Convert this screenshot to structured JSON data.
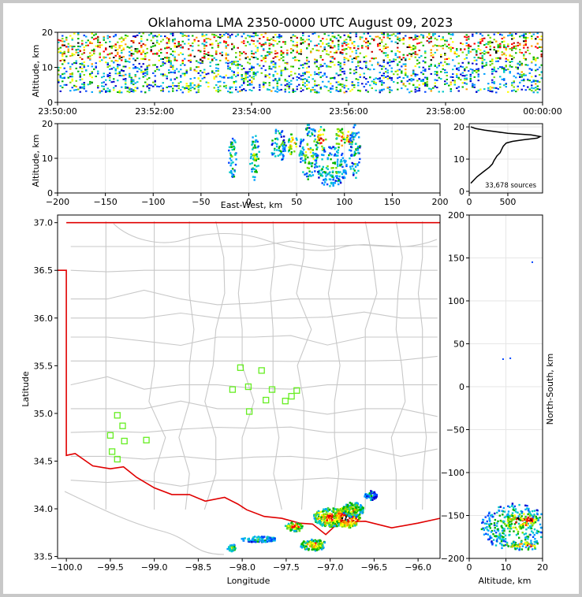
{
  "figure": {
    "title": "Oklahoma LMA 2350-0000 UTC August 09, 2023"
  },
  "chart_data": [
    {
      "panel": "altitude-vs-time",
      "type": "heatmap",
      "ylabel": "Altitude, km",
      "ylim": [
        0,
        20
      ],
      "y_ticks": [
        "0",
        "10",
        "20"
      ],
      "x_ticks": [
        "23:50:00",
        "23:52:00",
        "23:54:00",
        "23:56:00",
        "23:58:00",
        "00:00:00"
      ],
      "x_range": [
        "23:50:00",
        "00:00:00"
      ]
    },
    {
      "panel": "altitude-vs-east-west",
      "type": "heatmap",
      "xlabel": "East-West, km",
      "ylabel": "Altitude, km",
      "xlim": [
        -200,
        200
      ],
      "ylim": [
        0,
        20
      ],
      "x_ticks": [
        "−200",
        "−150",
        "−100",
        "−50",
        "0",
        "50",
        "100",
        "150",
        "200"
      ],
      "y_ticks": [
        "0",
        "10",
        "20"
      ],
      "blobs": [
        {
          "x": -18,
          "y": 11,
          "w": 8,
          "h": 14,
          "level": 0.45
        },
        {
          "x": 5,
          "y": 11,
          "w": 10,
          "h": 14,
          "level": 0.5
        },
        {
          "x": 30,
          "y": 14,
          "w": 16,
          "h": 10,
          "level": 0.45
        },
        {
          "x": 45,
          "y": 14,
          "w": 10,
          "h": 7,
          "level": 0.85
        },
        {
          "x": 62,
          "y": 12,
          "w": 20,
          "h": 16,
          "level": 0.55
        },
        {
          "x": 75,
          "y": 16,
          "w": 10,
          "h": 7,
          "level": 0.9
        },
        {
          "x": 95,
          "y": 16,
          "w": 10,
          "h": 7,
          "level": 0.9
        },
        {
          "x": 105,
          "y": 16,
          "w": 8,
          "h": 6,
          "level": 1.0
        },
        {
          "x": 85,
          "y": 8,
          "w": 35,
          "h": 12,
          "level": 0.45
        },
        {
          "x": 110,
          "y": 12,
          "w": 12,
          "h": 16,
          "level": 0.4
        }
      ]
    },
    {
      "panel": "altitude-histogram",
      "type": "line",
      "annotation": "33,678 sources",
      "xlim": [
        0,
        950
      ],
      "ylim": [
        -0.5,
        21
      ],
      "x_ticks": [
        "0",
        "500"
      ],
      "y_ticks": [
        "0",
        "10",
        "20"
      ],
      "x": [
        20,
        60,
        100,
        180,
        260,
        300,
        320,
        360,
        380,
        400,
        420,
        440,
        460,
        480,
        560,
        700,
        880,
        920,
        800,
        500,
        200,
        80,
        20
      ],
      "y": [
        2.5,
        3.5,
        4.5,
        6,
        7.5,
        8.5,
        9.5,
        11,
        11.5,
        12,
        13,
        14,
        14.5,
        15,
        15.5,
        16,
        16.5,
        17,
        17.5,
        18,
        19,
        19.5,
        20
      ]
    },
    {
      "panel": "plan-view",
      "type": "scatter",
      "xlabel": "Longitude",
      "ylabel": "Latitude",
      "xlim": [
        -100.1,
        -95.75
      ],
      "ylim": [
        33.48,
        37.08
      ],
      "x_ticks": [
        "−100.0",
        "−99.5",
        "−99.0",
        "−98.5",
        "−98.0",
        "−97.5",
        "−97.0",
        "−96.5",
        "−96.0"
      ],
      "y_ticks": [
        "33.5",
        "34.0",
        "34.5",
        "35.0",
        "35.5",
        "36.0",
        "36.5",
        "37.0"
      ],
      "stations": [
        {
          "lon": -98.02,
          "lat": 35.48
        },
        {
          "lon": -97.78,
          "lat": 35.45
        },
        {
          "lon": -97.93,
          "lat": 35.28
        },
        {
          "lon": -98.11,
          "lat": 35.25
        },
        {
          "lon": -97.66,
          "lat": 35.25
        },
        {
          "lon": -97.38,
          "lat": 35.24
        },
        {
          "lon": -97.44,
          "lat": 35.18
        },
        {
          "lon": -97.73,
          "lat": 35.14
        },
        {
          "lon": -97.51,
          "lat": 35.13
        },
        {
          "lon": -97.92,
          "lat": 35.02
        },
        {
          "lon": -99.42,
          "lat": 34.98
        },
        {
          "lon": -99.36,
          "lat": 34.87
        },
        {
          "lon": -99.5,
          "lat": 34.77
        },
        {
          "lon": -99.34,
          "lat": 34.71
        },
        {
          "lon": -99.09,
          "lat": 34.72
        },
        {
          "lon": -99.48,
          "lat": 34.6
        },
        {
          "lon": -99.42,
          "lat": 34.52
        }
      ],
      "blobs": [
        {
          "lon": -97.0,
          "lat": 33.92,
          "rx": 0.2,
          "ry": 0.1,
          "level": 0.8
        },
        {
          "lon": -96.82,
          "lat": 33.92,
          "rx": 0.15,
          "ry": 0.11,
          "level": 1.0
        },
        {
          "lon": -96.75,
          "lat": 34.0,
          "rx": 0.12,
          "ry": 0.08,
          "level": 0.6
        },
        {
          "lon": -97.2,
          "lat": 33.63,
          "rx": 0.15,
          "ry": 0.06,
          "level": 0.7
        },
        {
          "lon": -97.42,
          "lat": 33.82,
          "rx": 0.1,
          "ry": 0.05,
          "level": 0.75
        },
        {
          "lon": -97.82,
          "lat": 33.69,
          "rx": 0.2,
          "ry": 0.03,
          "level": 0.4
        },
        {
          "lon": -98.13,
          "lat": 33.6,
          "rx": 0.05,
          "ry": 0.04,
          "level": 0.5
        },
        {
          "lon": -96.55,
          "lat": 34.15,
          "rx": 0.07,
          "ry": 0.05,
          "level": 0.3
        }
      ]
    },
    {
      "panel": "north-south-vs-altitude",
      "type": "heatmap",
      "xlabel": "Altitude, km",
      "ylabel": "North-South, km",
      "xlim": [
        0,
        20
      ],
      "ylim": [
        -200,
        200
      ],
      "x_ticks": [
        "0",
        "10",
        "20"
      ],
      "y_ticks": [
        "200",
        "150",
        "100",
        "50",
        "0",
        "−50",
        "−100",
        "−150",
        "−200"
      ],
      "blobs": [
        {
          "x": 12,
          "y": -162,
          "w": 18,
          "h": 55,
          "level": 0.5
        },
        {
          "x": 14,
          "y": -155,
          "w": 10,
          "h": 22,
          "level": 0.9
        },
        {
          "x": 16,
          "y": -153,
          "w": 5,
          "h": 12,
          "level": 1.0
        },
        {
          "x": 15,
          "y": -184,
          "w": 12,
          "h": 10,
          "level": 0.8
        }
      ]
    }
  ]
}
